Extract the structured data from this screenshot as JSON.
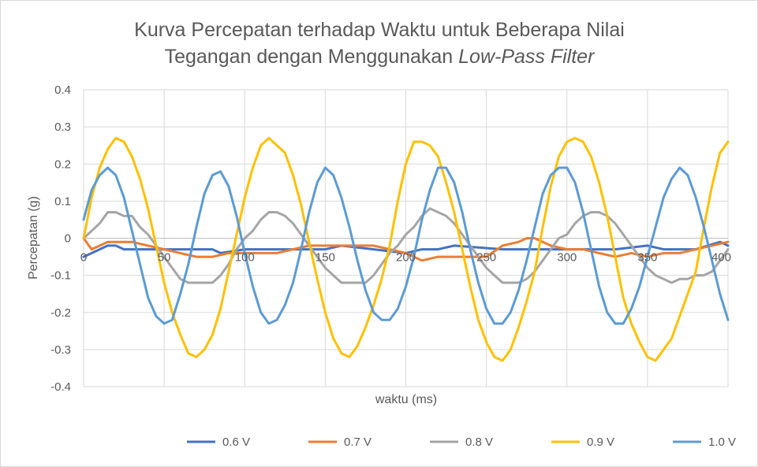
{
  "chart_data": {
    "type": "line",
    "title_line1": "Kurva Percepatan terhadap Waktu untuk Beberapa Nilai",
    "title_line2_prefix": "Tegangan dengan Menggunakan ",
    "title_line2_italic": "Low-Pass Filter",
    "xlabel": "waktu (ms)",
    "ylabel": "Percepatan (g)",
    "xlim": [
      0,
      400
    ],
    "ylim": [
      -0.4,
      0.4
    ],
    "x_ticks": [
      0,
      50,
      100,
      150,
      200,
      250,
      300,
      350,
      400
    ],
    "x_tick_labels": [
      "0",
      "50",
      "100",
      "150",
      "200",
      "250",
      "300",
      "350",
      "400"
    ],
    "y_ticks": [
      -0.4,
      -0.3,
      -0.2,
      -0.1,
      0,
      0.1,
      0.2,
      0.3,
      0.4
    ],
    "y_tick_labels": [
      "-0.4",
      "-0.3",
      "-0.2",
      "-0.1",
      "0",
      "0.1",
      "0.2",
      "0.3",
      "0.4"
    ],
    "grid": true,
    "legend_position": "bottom",
    "series": [
      {
        "name": "0.6 V",
        "color": "#4472c4",
        "x": [
          0,
          10,
          15,
          20,
          25,
          40,
          60,
          80,
          85,
          100,
          120,
          150,
          160,
          180,
          200,
          210,
          220,
          230,
          260,
          300,
          330,
          350,
          360,
          380,
          395,
          400
        ],
        "y": [
          -0.05,
          -0.03,
          -0.02,
          -0.02,
          -0.03,
          -0.03,
          -0.03,
          -0.03,
          -0.04,
          -0.03,
          -0.03,
          -0.03,
          -0.02,
          -0.03,
          -0.04,
          -0.03,
          -0.03,
          -0.02,
          -0.03,
          -0.03,
          -0.03,
          -0.02,
          -0.03,
          -0.03,
          -0.01,
          -0.02
        ]
      },
      {
        "name": "0.7 V",
        "color": "#ed7d31",
        "x": [
          0,
          5,
          10,
          15,
          20,
          25,
          30,
          40,
          50,
          60,
          70,
          80,
          90,
          100,
          120,
          130,
          140,
          150,
          160,
          170,
          180,
          190,
          200,
          210,
          220,
          230,
          240,
          250,
          260,
          270,
          275,
          280,
          290,
          300,
          310,
          320,
          330,
          340,
          350,
          360,
          370,
          380,
          390,
          400
        ],
        "y": [
          0,
          -0.03,
          -0.02,
          -0.01,
          -0.01,
          -0.01,
          -0.01,
          -0.02,
          -0.03,
          -0.04,
          -0.05,
          -0.05,
          -0.04,
          -0.04,
          -0.04,
          -0.03,
          -0.02,
          -0.02,
          -0.02,
          -0.02,
          -0.02,
          -0.03,
          -0.04,
          -0.06,
          -0.05,
          -0.05,
          -0.05,
          -0.05,
          -0.02,
          -0.01,
          0,
          0,
          -0.02,
          -0.03,
          -0.03,
          -0.04,
          -0.05,
          -0.04,
          -0.05,
          -0.04,
          -0.04,
          -0.03,
          -0.02,
          -0.01
        ]
      },
      {
        "name": "0.8 V",
        "color": "#a5a5a5",
        "x": [
          0,
          5,
          10,
          15,
          20,
          25,
          30,
          35,
          40,
          45,
          50,
          55,
          60,
          65,
          70,
          75,
          80,
          85,
          90,
          95,
          100,
          105,
          110,
          115,
          120,
          125,
          130,
          135,
          140,
          145,
          150,
          155,
          160,
          165,
          170,
          175,
          180,
          185,
          190,
          195,
          200,
          205,
          210,
          215,
          220,
          225,
          230,
          235,
          240,
          245,
          250,
          255,
          260,
          265,
          270,
          275,
          280,
          285,
          290,
          295,
          300,
          305,
          310,
          315,
          320,
          325,
          330,
          335,
          340,
          345,
          350,
          355,
          360,
          365,
          370,
          375,
          380,
          385,
          390,
          395,
          400
        ],
        "y": [
          0.0,
          0.02,
          0.04,
          0.07,
          0.07,
          0.06,
          0.06,
          0.03,
          0.01,
          -0.02,
          -0.05,
          -0.08,
          -0.11,
          -0.12,
          -0.12,
          -0.12,
          -0.12,
          -0.1,
          -0.07,
          -0.03,
          0.0,
          0.02,
          0.05,
          0.07,
          0.07,
          0.06,
          0.04,
          0.01,
          -0.02,
          -0.05,
          -0.08,
          -0.1,
          -0.12,
          -0.12,
          -0.12,
          -0.12,
          -0.1,
          -0.07,
          -0.04,
          -0.02,
          0.01,
          0.03,
          0.06,
          0.08,
          0.07,
          0.06,
          0.04,
          0.01,
          -0.02,
          -0.05,
          -0.08,
          -0.1,
          -0.12,
          -0.12,
          -0.12,
          -0.11,
          -0.09,
          -0.06,
          -0.03,
          0.0,
          0.01,
          0.04,
          0.06,
          0.07,
          0.07,
          0.06,
          0.04,
          0.01,
          -0.02,
          -0.05,
          -0.08,
          -0.1,
          -0.11,
          -0.12,
          -0.11,
          -0.11,
          -0.1,
          -0.1,
          -0.09,
          -0.06,
          -0.03
        ]
      },
      {
        "name": "0.9 V",
        "color": "#ffc000",
        "x": [
          0,
          5,
          10,
          15,
          20,
          25,
          30,
          35,
          40,
          45,
          50,
          55,
          60,
          65,
          70,
          75,
          80,
          85,
          90,
          95,
          100,
          105,
          110,
          115,
          120,
          125,
          130,
          135,
          140,
          145,
          150,
          155,
          160,
          165,
          170,
          175,
          180,
          185,
          190,
          195,
          200,
          205,
          210,
          215,
          220,
          225,
          230,
          235,
          240,
          245,
          250,
          255,
          260,
          265,
          270,
          275,
          280,
          285,
          290,
          295,
          300,
          305,
          310,
          315,
          320,
          325,
          330,
          335,
          340,
          345,
          350,
          355,
          360,
          365,
          370,
          375,
          380,
          385,
          390,
          395,
          400
        ],
        "y": [
          0.0,
          0.11,
          0.19,
          0.24,
          0.27,
          0.26,
          0.22,
          0.16,
          0.08,
          -0.02,
          -0.12,
          -0.2,
          -0.26,
          -0.31,
          -0.32,
          -0.3,
          -0.26,
          -0.19,
          -0.09,
          0.01,
          0.11,
          0.19,
          0.25,
          0.27,
          0.25,
          0.23,
          0.17,
          0.09,
          -0.01,
          -0.11,
          -0.2,
          -0.27,
          -0.31,
          -0.32,
          -0.29,
          -0.24,
          -0.18,
          -0.11,
          -0.02,
          0.1,
          0.2,
          0.26,
          0.26,
          0.25,
          0.22,
          0.15,
          0.07,
          -0.03,
          -0.13,
          -0.22,
          -0.28,
          -0.32,
          -0.33,
          -0.3,
          -0.24,
          -0.17,
          -0.09,
          0.03,
          0.14,
          0.22,
          0.26,
          0.27,
          0.26,
          0.22,
          0.15,
          0.06,
          -0.05,
          -0.16,
          -0.23,
          -0.28,
          -0.32,
          -0.33,
          -0.3,
          -0.27,
          -0.21,
          -0.15,
          -0.09,
          0.03,
          0.14,
          0.23,
          0.26
        ]
      },
      {
        "name": "1.0 V",
        "color": "#5b9bd5",
        "x": [
          0,
          5,
          10,
          15,
          20,
          25,
          30,
          35,
          40,
          45,
          50,
          55,
          60,
          65,
          70,
          75,
          80,
          85,
          90,
          95,
          100,
          105,
          110,
          115,
          120,
          125,
          130,
          135,
          140,
          145,
          150,
          155,
          160,
          165,
          170,
          175,
          180,
          185,
          190,
          195,
          200,
          205,
          210,
          215,
          220,
          225,
          230,
          235,
          240,
          245,
          250,
          255,
          260,
          265,
          270,
          275,
          280,
          285,
          290,
          295,
          300,
          305,
          310,
          315,
          320,
          325,
          330,
          335,
          340,
          345,
          350,
          355,
          360,
          365,
          370,
          375,
          380,
          385,
          390,
          395,
          400
        ],
        "y": [
          0.05,
          0.13,
          0.17,
          0.19,
          0.17,
          0.11,
          0.02,
          -0.07,
          -0.16,
          -0.21,
          -0.23,
          -0.22,
          -0.15,
          -0.07,
          0.03,
          0.12,
          0.17,
          0.18,
          0.14,
          0.06,
          -0.04,
          -0.13,
          -0.2,
          -0.23,
          -0.22,
          -0.18,
          -0.12,
          -0.03,
          0.07,
          0.15,
          0.19,
          0.17,
          0.11,
          0.03,
          -0.06,
          -0.14,
          -0.2,
          -0.22,
          -0.22,
          -0.19,
          -0.13,
          -0.05,
          0.05,
          0.13,
          0.19,
          0.19,
          0.15,
          0.07,
          -0.03,
          -0.12,
          -0.19,
          -0.23,
          -0.23,
          -0.2,
          -0.14,
          -0.06,
          0.03,
          0.12,
          0.17,
          0.19,
          0.19,
          0.15,
          0.07,
          -0.03,
          -0.13,
          -0.2,
          -0.23,
          -0.23,
          -0.19,
          -0.13,
          -0.05,
          0.03,
          0.11,
          0.16,
          0.19,
          0.17,
          0.11,
          0.03,
          -0.06,
          -0.15,
          -0.22
        ]
      }
    ]
  }
}
